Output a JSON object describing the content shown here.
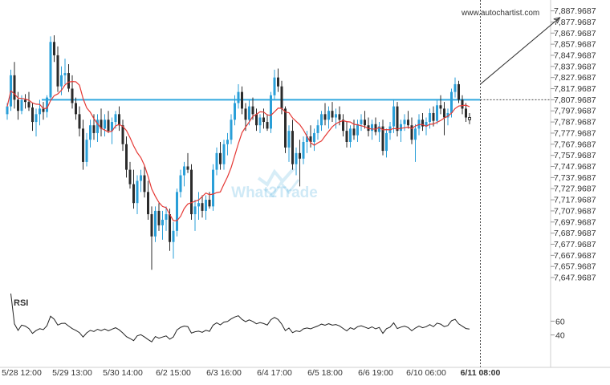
{
  "source": "www.autochartist.com",
  "watermark": "What2Trade",
  "rsi_label": "RSI",
  "colors": {
    "bull": "#2a9fd8",
    "bear": "#2b2b2b",
    "ma": "#e53935",
    "resistance": "#33a9df",
    "text": "#333333",
    "grid": "#e6e6e6"
  },
  "chart_data": {
    "type": "candlestick",
    "instrument_timeframe": "1H",
    "y_ticks": [
      "7,887.9687",
      "7,877.9687",
      "7,867.9687",
      "7,857.9687",
      "7,847.9687",
      "7,837.9687",
      "7,827.9687",
      "7,817.9687",
      "7,807.9687",
      "7,797.9687",
      "7,787.9687",
      "7,777.9687",
      "7,767.9687",
      "7,757.9687",
      "7,747.9687",
      "7,737.9687",
      "7,727.9687",
      "7,717.9687",
      "7,707.9687",
      "7,697.9687",
      "7,687.9687",
      "7,677.9687",
      "7,667.9687",
      "7,657.9687",
      "7,647.9687"
    ],
    "ylim": [
      7642.9687,
      7891.9687
    ],
    "x_ticks": [
      {
        "label": "5/28 12:00",
        "index": 4
      },
      {
        "label": "5/29 13:00",
        "index": 18
      },
      {
        "label": "5/30 14:00",
        "index": 32
      },
      {
        "label": "6/2 15:00",
        "index": 46
      },
      {
        "label": "6/3 16:00",
        "index": 60
      },
      {
        "label": "6/4 17:00",
        "index": 74
      },
      {
        "label": "6/5 18:00",
        "index": 88
      },
      {
        "label": "6/6 19:00",
        "index": 102
      },
      {
        "label": "6/10 06:00",
        "index": 116
      },
      {
        "label": "6/11 08:00",
        "index": 131,
        "bold": true
      }
    ],
    "resistance": {
      "value": 7807.9687,
      "from_index": 10,
      "to_index": 131
    },
    "breakout_index": 131,
    "projection": {
      "from": {
        "index": 131,
        "value": 7822.0
      },
      "to": {
        "index": 153,
        "value": 7882.0
      }
    },
    "candles": [
      [
        7795,
        7805,
        7790,
        7802
      ],
      [
        7802,
        7835,
        7798,
        7830
      ],
      [
        7830,
        7842,
        7800,
        7808
      ],
      [
        7808,
        7815,
        7790,
        7798
      ],
      [
        7798,
        7812,
        7795,
        7808
      ],
      [
        7808,
        7813,
        7800,
        7806
      ],
      [
        7806,
        7815,
        7798,
        7801
      ],
      [
        7801,
        7805,
        7780,
        7788
      ],
      [
        7788,
        7800,
        7775,
        7795
      ],
      [
        7795,
        7808,
        7785,
        7800
      ],
      [
        7800,
        7806,
        7790,
        7797
      ],
      [
        7797,
        7812,
        7792,
        7810
      ],
      [
        7810,
        7865,
        7808,
        7860
      ],
      [
        7860,
        7866,
        7842,
        7848
      ],
      [
        7848,
        7856,
        7815,
        7820
      ],
      [
        7820,
        7838,
        7812,
        7830
      ],
      [
        7830,
        7845,
        7822,
        7832
      ],
      [
        7832,
        7840,
        7815,
        7818
      ],
      [
        7818,
        7830,
        7800,
        7805
      ],
      [
        7805,
        7810,
        7790,
        7795
      ],
      [
        7795,
        7802,
        7775,
        7782
      ],
      [
        7782,
        7790,
        7745,
        7752
      ],
      [
        7752,
        7778,
        7748,
        7772
      ],
      [
        7772,
        7790,
        7765,
        7785
      ],
      [
        7785,
        7795,
        7772,
        7778
      ],
      [
        7778,
        7795,
        7770,
        7790
      ],
      [
        7790,
        7800,
        7775,
        7782
      ],
      [
        7782,
        7795,
        7775,
        7790
      ],
      [
        7790,
        7798,
        7778,
        7780
      ],
      [
        7780,
        7792,
        7768,
        7788
      ],
      [
        7788,
        7798,
        7782,
        7795
      ],
      [
        7795,
        7802,
        7780,
        7785
      ],
      [
        7785,
        7790,
        7762,
        7768
      ],
      [
        7768,
        7775,
        7738,
        7745
      ],
      [
        7745,
        7752,
        7728,
        7732
      ],
      [
        7732,
        7745,
        7710,
        7715
      ],
      [
        7715,
        7740,
        7705,
        7735
      ],
      [
        7735,
        7745,
        7725,
        7740
      ],
      [
        7740,
        7748,
        7720,
        7725
      ],
      [
        7725,
        7735,
        7700,
        7705
      ],
      [
        7705,
        7712,
        7655,
        7685
      ],
      [
        7685,
        7712,
        7680,
        7708
      ],
      [
        7708,
        7715,
        7690,
        7695
      ],
      [
        7695,
        7708,
        7682,
        7700
      ],
      [
        7700,
        7712,
        7690,
        7705
      ],
      [
        7705,
        7710,
        7672,
        7680
      ],
      [
        7680,
        7698,
        7665,
        7690
      ],
      [
        7690,
        7728,
        7685,
        7725
      ],
      [
        7725,
        7745,
        7720,
        7740
      ],
      [
        7740,
        7752,
        7730,
        7748
      ],
      [
        7748,
        7760,
        7742,
        7745
      ],
      [
        7745,
        7750,
        7700,
        7705
      ],
      [
        7705,
        7718,
        7690,
        7712
      ],
      [
        7712,
        7725,
        7700,
        7715
      ],
      [
        7715,
        7722,
        7702,
        7708
      ],
      [
        7708,
        7722,
        7700,
        7718
      ],
      [
        7718,
        7725,
        7710,
        7712
      ],
      [
        7712,
        7750,
        7708,
        7745
      ],
      [
        7745,
        7765,
        7740,
        7760
      ],
      [
        7760,
        7770,
        7745,
        7750
      ],
      [
        7750,
        7772,
        7745,
        7768
      ],
      [
        7768,
        7778,
        7758,
        7772
      ],
      [
        7772,
        7795,
        7768,
        7790
      ],
      [
        7790,
        7812,
        7785,
        7805
      ],
      [
        7805,
        7822,
        7800,
        7815
      ],
      [
        7815,
        7820,
        7795,
        7800
      ],
      [
        7800,
        7805,
        7780,
        7790
      ],
      [
        7790,
        7808,
        7785,
        7802
      ],
      [
        7802,
        7810,
        7790,
        7795
      ],
      [
        7795,
        7800,
        7780,
        7785
      ],
      [
        7785,
        7795,
        7778,
        7792
      ],
      [
        7792,
        7800,
        7782,
        7788
      ],
      [
        7788,
        7795,
        7780,
        7782
      ],
      [
        7782,
        7815,
        7778,
        7812
      ],
      [
        7812,
        7835,
        7808,
        7828
      ],
      [
        7828,
        7836,
        7815,
        7820
      ],
      [
        7820,
        7825,
        7795,
        7800
      ],
      [
        7800,
        7802,
        7760,
        7765
      ],
      [
        7765,
        7785,
        7752,
        7780
      ],
      [
        7780,
        7790,
        7745,
        7750
      ],
      [
        7750,
        7765,
        7740,
        7760
      ],
      [
        7760,
        7772,
        7730,
        7755
      ],
      [
        7755,
        7775,
        7750,
        7770
      ],
      [
        7770,
        7780,
        7760,
        7775
      ],
      [
        7775,
        7785,
        7765,
        7770
      ],
      [
        7770,
        7782,
        7762,
        7778
      ],
      [
        7778,
        7790,
        7772,
        7785
      ],
      [
        7785,
        7798,
        7780,
        7795
      ],
      [
        7795,
        7805,
        7785,
        7790
      ],
      [
        7790,
        7802,
        7782,
        7798
      ],
      [
        7798,
        7806,
        7788,
        7792
      ],
      [
        7792,
        7800,
        7782,
        7795
      ],
      [
        7795,
        7802,
        7785,
        7790
      ],
      [
        7790,
        7795,
        7775,
        7780
      ],
      [
        7780,
        7788,
        7765,
        7770
      ],
      [
        7770,
        7785,
        7765,
        7782
      ],
      [
        7782,
        7790,
        7772,
        7776
      ],
      [
        7776,
        7790,
        7770,
        7786
      ],
      [
        7786,
        7795,
        7780,
        7790
      ],
      [
        7790,
        7798,
        7782,
        7785
      ],
      [
        7785,
        7792,
        7775,
        7780
      ],
      [
        7780,
        7790,
        7772,
        7786
      ],
      [
        7786,
        7792,
        7776,
        7779
      ],
      [
        7779,
        7788,
        7770,
        7784
      ],
      [
        7784,
        7790,
        7758,
        7762
      ],
      [
        7762,
        7782,
        7756,
        7778
      ],
      [
        7778,
        7788,
        7772,
        7784
      ],
      [
        7784,
        7808,
        7778,
        7802
      ],
      [
        7802,
        7806,
        7775,
        7780
      ],
      [
        7780,
        7790,
        7770,
        7786
      ],
      [
        7786,
        7795,
        7780,
        7790
      ],
      [
        7790,
        7798,
        7782,
        7785
      ],
      [
        7785,
        7792,
        7768,
        7772
      ],
      [
        7772,
        7786,
        7752,
        7782
      ],
      [
        7782,
        7795,
        7776,
        7790
      ],
      [
        7790,
        7796,
        7780,
        7784
      ],
      [
        7784,
        7792,
        7776,
        7788
      ],
      [
        7788,
        7800,
        7782,
        7796
      ],
      [
        7796,
        7802,
        7784,
        7789
      ],
      [
        7789,
        7808,
        7786,
        7803
      ],
      [
        7803,
        7812,
        7795,
        7800
      ],
      [
        7800,
        7806,
        7776,
        7792
      ],
      [
        7792,
        7800,
        7785,
        7796
      ],
      [
        7796,
        7818,
        7792,
        7815
      ],
      [
        7815,
        7828,
        7810,
        7822
      ],
      [
        7822,
        7825,
        7805,
        7808
      ],
      [
        7808,
        7812,
        7795,
        7800
      ],
      [
        7800,
        7805,
        7788,
        7792
      ],
      [
        7792,
        7796,
        7786,
        7790
      ]
    ]
  }
}
